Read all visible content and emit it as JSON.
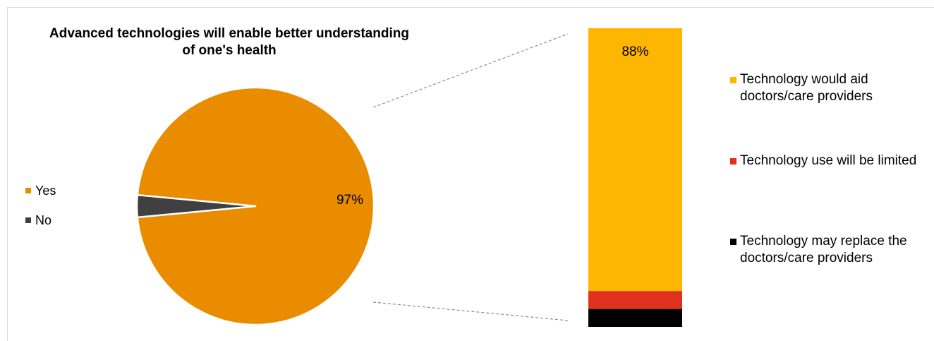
{
  "chart_data": [
    {
      "type": "pie",
      "title": "Advanced technologies will enable better understanding of one's health",
      "legend_position": "left",
      "slices": [
        {
          "label": "Yes",
          "value": 97,
          "color": "#e98c00",
          "data_label": "97%"
        },
        {
          "label": "No",
          "value": 3,
          "color": "#404040",
          "data_label": ""
        }
      ]
    },
    {
      "type": "bar",
      "stacked": true,
      "legend_position": "right",
      "segments": [
        {
          "label": "Technology would aid doctors/care providers",
          "value": 88,
          "color": "#ffb600",
          "data_label": "88%"
        },
        {
          "label": "Technology use will be limited",
          "value": 6,
          "color": "#e0301e",
          "data_label": ""
        },
        {
          "label": "Technology may replace the doctors/care providers",
          "value": 6,
          "color": "#000000",
          "data_label": ""
        }
      ]
    }
  ]
}
